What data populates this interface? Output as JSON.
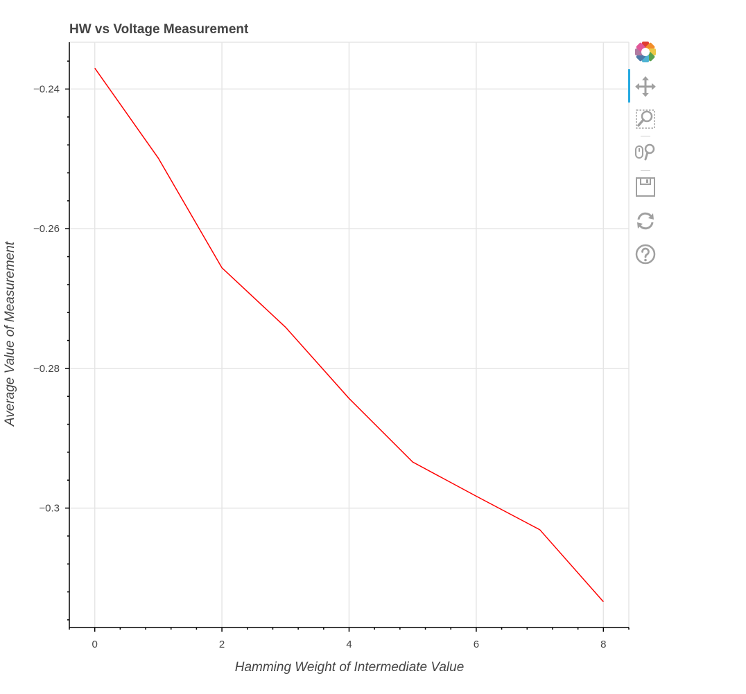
{
  "chart_data": {
    "type": "line",
    "title": "HW vs Voltage Measurement",
    "xlabel": "Hamming Weight of Intermediate Value",
    "ylabel": "Average Value of Measurement",
    "x": [
      0,
      1,
      2,
      3,
      4,
      5,
      6,
      7,
      8
    ],
    "series": [
      {
        "values": [
          -0.237,
          -0.2499,
          -0.2656,
          -0.2741,
          -0.2843,
          -0.2934,
          -0.2983,
          -0.3031,
          -0.3134
        ]
      }
    ],
    "xlim": [
      -0.4,
      8.4
    ],
    "ylim": [
      -0.3171,
      -0.2333
    ],
    "xticks": [
      0,
      2,
      4,
      6,
      8
    ],
    "xtick_labels": [
      "0",
      "2",
      "4",
      "6",
      "8"
    ],
    "yticks": [
      -0.24,
      -0.26,
      -0.28,
      -0.3
    ],
    "ytick_labels": [
      "−0.24",
      "−0.26",
      "−0.28",
      "−0.3"
    ],
    "grid": true,
    "line_color": "#ff0000"
  },
  "toolbar": {
    "tools": [
      "bokeh-logo-icon",
      "pan-icon",
      "box-zoom-icon",
      "wheel-zoom-icon",
      "save-icon",
      "reset-icon",
      "help-icon"
    ]
  }
}
